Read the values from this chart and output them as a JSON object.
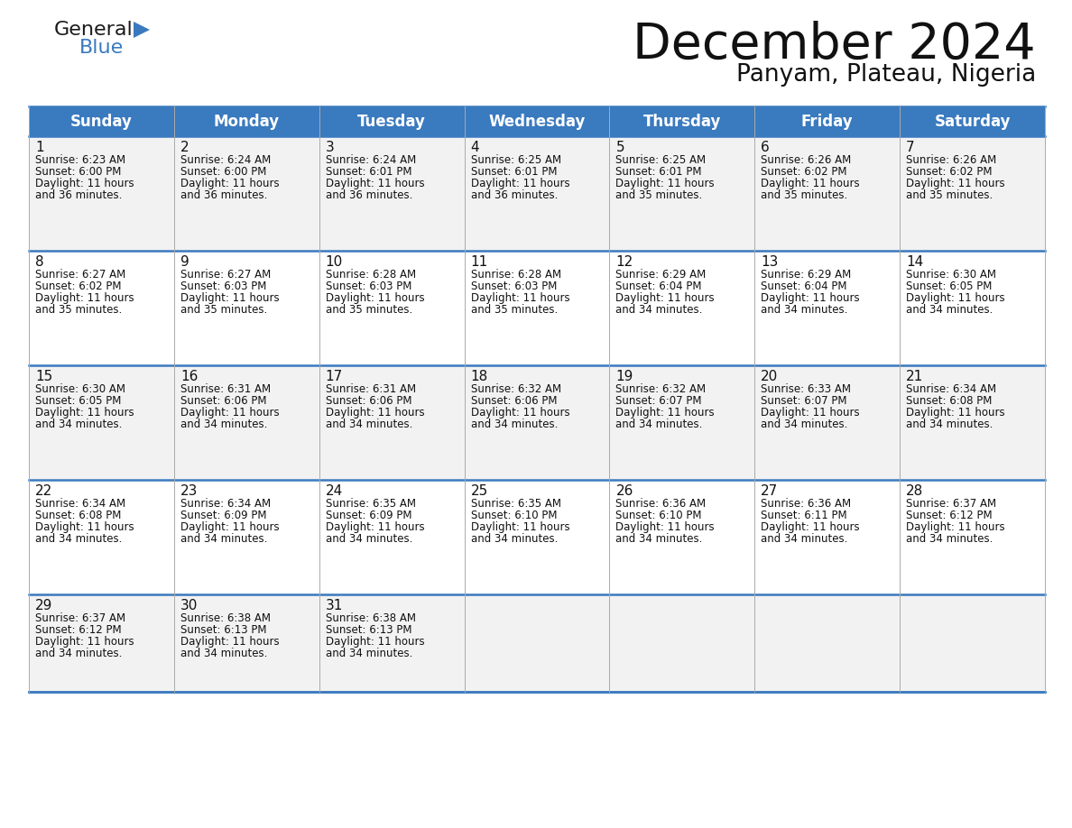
{
  "title": "December 2024",
  "subtitle": "Panyam, Plateau, Nigeria",
  "header_color": "#3a7abf",
  "header_text_color": "#ffffff",
  "cell_bg_even": "#f2f2f2",
  "cell_bg_odd": "#ffffff",
  "border_color": "#3a7abf",
  "grid_color": "#aaaaaa",
  "day_headers": [
    "Sunday",
    "Monday",
    "Tuesday",
    "Wednesday",
    "Thursday",
    "Friday",
    "Saturday"
  ],
  "weeks": [
    [
      {
        "day": 1,
        "sunrise": "6:23 AM",
        "sunset": "6:00 PM",
        "daylight_hrs": 11,
        "daylight_min": 36
      },
      {
        "day": 2,
        "sunrise": "6:24 AM",
        "sunset": "6:00 PM",
        "daylight_hrs": 11,
        "daylight_min": 36
      },
      {
        "day": 3,
        "sunrise": "6:24 AM",
        "sunset": "6:01 PM",
        "daylight_hrs": 11,
        "daylight_min": 36
      },
      {
        "day": 4,
        "sunrise": "6:25 AM",
        "sunset": "6:01 PM",
        "daylight_hrs": 11,
        "daylight_min": 36
      },
      {
        "day": 5,
        "sunrise": "6:25 AM",
        "sunset": "6:01 PM",
        "daylight_hrs": 11,
        "daylight_min": 35
      },
      {
        "day": 6,
        "sunrise": "6:26 AM",
        "sunset": "6:02 PM",
        "daylight_hrs": 11,
        "daylight_min": 35
      },
      {
        "day": 7,
        "sunrise": "6:26 AM",
        "sunset": "6:02 PM",
        "daylight_hrs": 11,
        "daylight_min": 35
      }
    ],
    [
      {
        "day": 8,
        "sunrise": "6:27 AM",
        "sunset": "6:02 PM",
        "daylight_hrs": 11,
        "daylight_min": 35
      },
      {
        "day": 9,
        "sunrise": "6:27 AM",
        "sunset": "6:03 PM",
        "daylight_hrs": 11,
        "daylight_min": 35
      },
      {
        "day": 10,
        "sunrise": "6:28 AM",
        "sunset": "6:03 PM",
        "daylight_hrs": 11,
        "daylight_min": 35
      },
      {
        "day": 11,
        "sunrise": "6:28 AM",
        "sunset": "6:03 PM",
        "daylight_hrs": 11,
        "daylight_min": 35
      },
      {
        "day": 12,
        "sunrise": "6:29 AM",
        "sunset": "6:04 PM",
        "daylight_hrs": 11,
        "daylight_min": 34
      },
      {
        "day": 13,
        "sunrise": "6:29 AM",
        "sunset": "6:04 PM",
        "daylight_hrs": 11,
        "daylight_min": 34
      },
      {
        "day": 14,
        "sunrise": "6:30 AM",
        "sunset": "6:05 PM",
        "daylight_hrs": 11,
        "daylight_min": 34
      }
    ],
    [
      {
        "day": 15,
        "sunrise": "6:30 AM",
        "sunset": "6:05 PM",
        "daylight_hrs": 11,
        "daylight_min": 34
      },
      {
        "day": 16,
        "sunrise": "6:31 AM",
        "sunset": "6:06 PM",
        "daylight_hrs": 11,
        "daylight_min": 34
      },
      {
        "day": 17,
        "sunrise": "6:31 AM",
        "sunset": "6:06 PM",
        "daylight_hrs": 11,
        "daylight_min": 34
      },
      {
        "day": 18,
        "sunrise": "6:32 AM",
        "sunset": "6:06 PM",
        "daylight_hrs": 11,
        "daylight_min": 34
      },
      {
        "day": 19,
        "sunrise": "6:32 AM",
        "sunset": "6:07 PM",
        "daylight_hrs": 11,
        "daylight_min": 34
      },
      {
        "day": 20,
        "sunrise": "6:33 AM",
        "sunset": "6:07 PM",
        "daylight_hrs": 11,
        "daylight_min": 34
      },
      {
        "day": 21,
        "sunrise": "6:34 AM",
        "sunset": "6:08 PM",
        "daylight_hrs": 11,
        "daylight_min": 34
      }
    ],
    [
      {
        "day": 22,
        "sunrise": "6:34 AM",
        "sunset": "6:08 PM",
        "daylight_hrs": 11,
        "daylight_min": 34
      },
      {
        "day": 23,
        "sunrise": "6:34 AM",
        "sunset": "6:09 PM",
        "daylight_hrs": 11,
        "daylight_min": 34
      },
      {
        "day": 24,
        "sunrise": "6:35 AM",
        "sunset": "6:09 PM",
        "daylight_hrs": 11,
        "daylight_min": 34
      },
      {
        "day": 25,
        "sunrise": "6:35 AM",
        "sunset": "6:10 PM",
        "daylight_hrs": 11,
        "daylight_min": 34
      },
      {
        "day": 26,
        "sunrise": "6:36 AM",
        "sunset": "6:10 PM",
        "daylight_hrs": 11,
        "daylight_min": 34
      },
      {
        "day": 27,
        "sunrise": "6:36 AM",
        "sunset": "6:11 PM",
        "daylight_hrs": 11,
        "daylight_min": 34
      },
      {
        "day": 28,
        "sunrise": "6:37 AM",
        "sunset": "6:12 PM",
        "daylight_hrs": 11,
        "daylight_min": 34
      }
    ],
    [
      {
        "day": 29,
        "sunrise": "6:37 AM",
        "sunset": "6:12 PM",
        "daylight_hrs": 11,
        "daylight_min": 34
      },
      {
        "day": 30,
        "sunrise": "6:38 AM",
        "sunset": "6:13 PM",
        "daylight_hrs": 11,
        "daylight_min": 34
      },
      {
        "day": 31,
        "sunrise": "6:38 AM",
        "sunset": "6:13 PM",
        "daylight_hrs": 11,
        "daylight_min": 34
      },
      null,
      null,
      null,
      null
    ]
  ],
  "logo_color_general": "#1a1a1a",
  "logo_color_blue": "#3a7abf",
  "logo_triangle_color": "#3a7abf",
  "title_fontsize": 40,
  "subtitle_fontsize": 19,
  "header_fontsize": 12,
  "day_num_fontsize": 11,
  "cell_text_fontsize": 8.5
}
